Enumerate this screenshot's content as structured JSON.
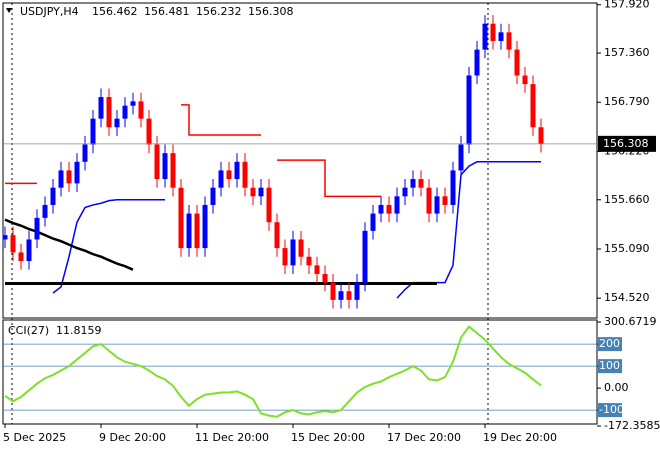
{
  "chart_data": {
    "type": "candlestick",
    "title": "USDJPY,H4",
    "ohlc_header": [
      "156.462",
      "156.481",
      "156.232",
      "156.308"
    ],
    "categories": [
      "5 Dec 2025",
      null,
      null,
      null,
      null,
      null,
      null,
      null,
      null,
      null,
      null,
      null,
      "9 Dec 20:00",
      null,
      null,
      null,
      null,
      null,
      null,
      null,
      null,
      null,
      null,
      null,
      "11 Dec 20:00",
      null,
      null,
      null,
      null,
      null,
      null,
      null,
      null,
      null,
      null,
      null,
      "15 Dec 20:00",
      null,
      null,
      null,
      null,
      null,
      null,
      null,
      null,
      null,
      null,
      null,
      "17 Dec 20:00",
      null,
      null,
      null,
      null,
      null,
      null,
      null,
      null,
      null,
      null,
      null,
      "19 Dec 20:00",
      null,
      null,
      null,
      null,
      null,
      null,
      null
    ],
    "open": [
      155.2,
      155.25,
      155.05,
      154.95,
      155.2,
      155.45,
      155.6,
      155.8,
      156.0,
      155.85,
      156.1,
      156.3,
      156.6,
      156.85,
      156.5,
      156.6,
      156.75,
      156.8,
      156.6,
      156.3,
      155.9,
      156.2,
      155.8,
      155.1,
      155.5,
      155.1,
      155.6,
      155.8,
      156.0,
      155.9,
      156.1,
      155.8,
      155.7,
      155.8,
      155.4,
      155.1,
      154.9,
      155.2,
      155.0,
      154.9,
      154.8,
      154.7,
      154.5,
      154.6,
      154.5,
      154.7,
      155.3,
      155.5,
      155.6,
      155.5,
      155.7,
      155.8,
      155.9,
      155.8,
      155.5,
      155.7,
      155.6,
      156.0,
      156.3,
      157.1,
      157.4,
      157.7,
      157.5,
      157.6,
      157.4,
      157.1,
      157.0,
      156.5
    ],
    "high": [
      155.35,
      155.35,
      155.15,
      155.3,
      155.55,
      155.7,
      155.9,
      156.1,
      156.1,
      156.2,
      156.4,
      156.7,
      156.95,
      156.95,
      156.7,
      156.85,
      156.9,
      156.9,
      156.7,
      156.4,
      156.3,
      156.3,
      155.9,
      155.6,
      155.6,
      155.7,
      155.9,
      156.1,
      156.1,
      156.2,
      156.2,
      155.9,
      155.9,
      155.9,
      155.5,
      155.2,
      155.3,
      155.3,
      155.1,
      155.0,
      154.9,
      154.8,
      154.7,
      154.7,
      154.8,
      155.4,
      155.6,
      155.7,
      155.7,
      155.8,
      155.9,
      156.0,
      156.0,
      155.9,
      155.8,
      155.8,
      156.1,
      156.4,
      157.2,
      157.5,
      157.8,
      157.8,
      157.7,
      157.7,
      157.5,
      157.2,
      157.1,
      156.6
    ],
    "low": [
      155.1,
      154.95,
      154.85,
      154.85,
      155.1,
      155.35,
      155.5,
      155.7,
      155.75,
      155.75,
      156.0,
      156.2,
      156.5,
      156.4,
      156.4,
      156.5,
      156.65,
      156.5,
      156.2,
      155.8,
      155.8,
      155.7,
      155.0,
      155.0,
      155.0,
      155.0,
      155.5,
      155.7,
      155.8,
      155.8,
      155.7,
      155.6,
      155.6,
      155.3,
      155.0,
      154.8,
      154.8,
      154.9,
      154.8,
      154.7,
      154.6,
      154.4,
      154.4,
      154.4,
      154.4,
      154.6,
      155.2,
      155.4,
      155.4,
      155.4,
      155.6,
      155.7,
      155.7,
      155.4,
      155.4,
      155.5,
      155.5,
      155.9,
      156.2,
      157.0,
      157.3,
      157.4,
      157.4,
      157.3,
      157.0,
      156.9,
      156.4,
      156.208
    ],
    "close": [
      155.25,
      155.05,
      154.95,
      155.2,
      155.45,
      155.6,
      155.8,
      156.0,
      155.85,
      156.1,
      156.3,
      156.6,
      156.85,
      156.5,
      156.6,
      156.75,
      156.8,
      156.6,
      156.3,
      155.9,
      156.2,
      155.8,
      155.1,
      155.5,
      155.1,
      155.6,
      155.8,
      156.0,
      155.9,
      156.1,
      155.8,
      155.7,
      155.8,
      155.4,
      155.1,
      154.9,
      155.2,
      155.0,
      154.9,
      154.8,
      154.7,
      154.5,
      154.6,
      154.5,
      154.7,
      155.3,
      155.5,
      155.6,
      155.5,
      155.7,
      155.8,
      155.9,
      155.8,
      155.5,
      155.7,
      155.6,
      156.0,
      156.3,
      157.1,
      157.4,
      157.7,
      157.5,
      157.6,
      157.4,
      157.1,
      157.0,
      156.5,
      156.308
    ],
    "up_color": "#0000ff",
    "down_color": "#ff0000",
    "last_price": {
      "value": 156.308,
      "label": "156.308"
    },
    "ylim": [
      154.29,
      157.94
    ],
    "yticks": [
      {
        "value": 157.92,
        "label": "157.920"
      },
      {
        "value": 157.36,
        "label": "157.360"
      },
      {
        "value": 156.79,
        "label": "156.790"
      },
      {
        "value": 156.22,
        "label": "156.220"
      },
      {
        "value": 155.66,
        "label": "155.660"
      },
      {
        "value": 155.09,
        "label": "155.090"
      },
      {
        "value": 154.52,
        "label": "154.520"
      }
    ],
    "series": [
      {
        "color": "#ff0000",
        "style": "step",
        "values": [
          155.85,
          155.85,
          155.85,
          155.85,
          155.85,
          null,
          null,
          null,
          null,
          null,
          null,
          null,
          null,
          null,
          null,
          null,
          null,
          null,
          null,
          null,
          null,
          null,
          156.76,
          156.41,
          156.41,
          156.41,
          156.41,
          156.41,
          156.41,
          156.41,
          156.41,
          156.41,
          156.41,
          null,
          156.12,
          156.12,
          156.12,
          156.12,
          156.12,
          156.12,
          155.7,
          155.7,
          155.7,
          155.7,
          155.7,
          155.7,
          155.7,
          155.7,
          null,
          null,
          null,
          null,
          null,
          null,
          null,
          null,
          null,
          null,
          null,
          null,
          null,
          null,
          null,
          null,
          null,
          null,
          null,
          null
        ]
      },
      {
        "color": "#0000ff",
        "style": "line",
        "values": [
          null,
          null,
          null,
          null,
          null,
          null,
          154.58,
          154.65,
          155.0,
          155.4,
          155.57,
          155.6,
          155.62,
          155.65,
          155.66,
          155.66,
          155.66,
          155.66,
          155.66,
          155.66,
          155.66,
          null,
          null,
          null,
          null,
          null,
          null,
          null,
          null,
          null,
          null,
          null,
          null,
          null,
          null,
          null,
          null,
          null,
          null,
          null,
          null,
          null,
          null,
          null,
          null,
          null,
          null,
          null,
          null,
          154.52,
          154.62,
          154.7,
          154.7,
          154.7,
          154.7,
          154.7,
          154.9,
          155.95,
          156.05,
          156.1,
          156.1,
          156.1,
          156.1,
          156.1,
          156.1,
          156.1,
          156.1,
          156.1
        ]
      },
      {
        "color": "#000000",
        "style": "line",
        "values": [
          155.43,
          155.39,
          155.36,
          155.32,
          155.29,
          155.25,
          155.21,
          155.18,
          155.14,
          155.1,
          155.07,
          155.03,
          155.0,
          154.96,
          154.92,
          154.89,
          154.85,
          null,
          null,
          null,
          null,
          null,
          null,
          null,
          null,
          null,
          null,
          null,
          null,
          null,
          null,
          null,
          null,
          null,
          null,
          null,
          null,
          null,
          null,
          null,
          null,
          null,
          null,
          null,
          null,
          null,
          null,
          null,
          null,
          null,
          null,
          null,
          null,
          null,
          null,
          null,
          null,
          null,
          null,
          null,
          null,
          null,
          null,
          null,
          null,
          null,
          null,
          null
        ]
      },
      {
        "color": "#000000",
        "style": "line",
        "values": [
          154.69,
          154.69,
          154.69,
          154.69,
          154.69,
          154.69,
          154.69,
          154.69,
          154.69,
          154.69,
          154.69,
          154.69,
          154.69,
          154.69,
          154.69,
          154.69,
          154.69,
          154.69,
          154.69,
          154.69,
          154.69,
          154.69,
          154.69,
          154.69,
          154.69,
          154.69,
          154.69,
          154.69,
          154.69,
          154.69,
          154.69,
          154.69,
          154.69,
          154.69,
          154.69,
          154.69,
          154.69,
          154.69,
          154.69,
          154.69,
          154.69,
          154.69,
          154.69,
          154.69,
          154.69,
          154.69,
          154.69,
          154.69,
          154.69,
          154.69,
          154.69,
          154.69,
          154.69,
          154.69,
          154.69,
          null,
          null,
          null,
          null,
          null,
          null,
          null,
          null,
          null,
          null,
          null,
          null,
          null
        ]
      }
    ],
    "cci": {
      "title": "CCI(27)",
      "value_label": "11.8159",
      "color": "#7fe02a",
      "values": [
        -35,
        -60,
        -40,
        -10,
        20,
        45,
        60,
        80,
        100,
        130,
        160,
        190,
        200,
        170,
        140,
        120,
        110,
        100,
        80,
        55,
        40,
        10,
        -40,
        -80,
        -50,
        -30,
        -25,
        -20,
        -20,
        -15,
        -30,
        -50,
        -115,
        -125,
        -130,
        -110,
        -100,
        -115,
        -120,
        -110,
        -105,
        -110,
        -100,
        -60,
        -20,
        5,
        20,
        30,
        50,
        65,
        80,
        100,
        80,
        40,
        35,
        50,
        120,
        230,
        280,
        250,
        220,
        180,
        140,
        110,
        90,
        70,
        40,
        11.8159
      ],
      "ylim": [
        -172.3585,
        300.6719
      ],
      "yticks": [
        300.6719,
        200,
        100,
        {
          "value": 0,
          "label": "0.00"
        },
        -100,
        -172.3585
      ],
      "levels": [
        200,
        100,
        -100
      ]
    }
  }
}
